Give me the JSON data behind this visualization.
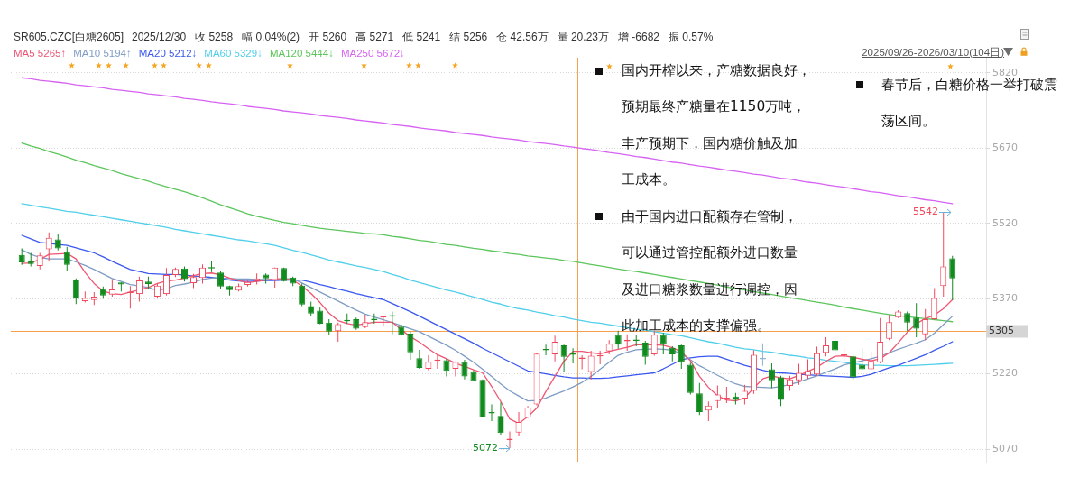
{
  "chart_data": {
    "type": "candlestick",
    "title": "SR605.CZC[白糖2605]",
    "subtitle": "2025/12/30   收 5258   幅 0.04%(2)   开 5260   高 5271   低 5241   结 5256   仓 42.56万   量 20.23万   增 -6682   振 0.57%",
    "categories": [
      null,
      null,
      null,
      null,
      null,
      null,
      null,
      null,
      null,
      null,
      null,
      null,
      null,
      null,
      null,
      null,
      null,
      null,
      null,
      null,
      null,
      null,
      null,
      null,
      null,
      null,
      null,
      null,
      null,
      null,
      null,
      null,
      null,
      null,
      null,
      null,
      null,
      null,
      null,
      null,
      null,
      null,
      null,
      null,
      null,
      null,
      null,
      null,
      null,
      null,
      null,
      null,
      null,
      null,
      null,
      null,
      null,
      null,
      null,
      null,
      null,
      null,
      null,
      null,
      null,
      null,
      null,
      null,
      null,
      null,
      null,
      null,
      null,
      null,
      null,
      null,
      null,
      null,
      null,
      null,
      null,
      null,
      null,
      null,
      null,
      null,
      null,
      null,
      null,
      null,
      null,
      null,
      null,
      null,
      null,
      null,
      null,
      null,
      null,
      null,
      null,
      null,
      null,
      null
    ],
    "ohlc": [
      [
        5457,
        5470,
        5437,
        5442
      ],
      [
        5446,
        5461,
        5434,
        5439
      ],
      [
        5435,
        5461,
        5428,
        5456
      ],
      [
        5468,
        5502,
        5444,
        5491
      ],
      [
        5488,
        5499,
        5466,
        5470
      ],
      [
        5463,
        5473,
        5426,
        5437
      ],
      [
        5408,
        5410,
        5359,
        5370
      ],
      [
        5365,
        5384,
        5362,
        5371
      ],
      [
        5367,
        5383,
        5357,
        5374
      ],
      [
        5389,
        5394,
        5370,
        5376
      ],
      [
        5378,
        5409,
        5374,
        5388
      ],
      [
        5402,
        5402,
        5384,
        5398
      ],
      [
        5381,
        5395,
        5350,
        5382
      ],
      [
        5379,
        5414,
        5364,
        5406
      ],
      [
        5404,
        5414,
        5389,
        5399
      ],
      [
        5374,
        5400,
        5371,
        5396
      ],
      [
        5379,
        5431,
        5376,
        5417
      ],
      [
        5417,
        5432,
        5413,
        5429
      ],
      [
        5430,
        5434,
        5404,
        5409
      ],
      [
        5401,
        5419,
        5391,
        5413
      ],
      [
        5411,
        5438,
        5400,
        5432
      ],
      [
        5431,
        5445,
        5423,
        5430
      ],
      [
        5422,
        5425,
        5389,
        5394
      ],
      [
        5395,
        5396,
        5376,
        5387
      ],
      [
        5386,
        5400,
        5384,
        5395
      ],
      [
        5397,
        5407,
        5394,
        5403
      ],
      [
        5405,
        5420,
        5398,
        5410
      ],
      [
        5418,
        5420,
        5400,
        5410
      ],
      [
        5407,
        5432,
        5392,
        5432
      ],
      [
        5431,
        5432,
        5404,
        5405
      ],
      [
        5412,
        5414,
        5395,
        5400
      ],
      [
        5396,
        5400,
        5355,
        5358
      ],
      [
        5355,
        5364,
        5335,
        5340
      ],
      [
        5346,
        5353,
        5319,
        5320
      ],
      [
        5322,
        5329,
        5298,
        5304
      ],
      [
        5305,
        5322,
        5284,
        5319
      ],
      [
        5326,
        5340,
        5320,
        5325
      ],
      [
        5329,
        5332,
        5308,
        5310
      ],
      [
        5313,
        5338,
        5311,
        5323
      ],
      [
        5328,
        5340,
        5320,
        5327
      ],
      [
        5332,
        5335,
        5314,
        5333
      ],
      [
        5337,
        5344,
        5299,
        5334
      ],
      [
        5314,
        5318,
        5296,
        5298
      ],
      [
        5300,
        5304,
        5248,
        5263
      ],
      [
        5251,
        5268,
        5230,
        5232
      ],
      [
        5230,
        5257,
        5227,
        5244
      ],
      [
        5246,
        5257,
        5230,
        5248
      ],
      [
        5247,
        5250,
        5215,
        5226
      ],
      [
        5230,
        5245,
        5215,
        5244
      ],
      [
        5244,
        5248,
        5209,
        5215
      ],
      [
        5224,
        5227,
        5205,
        5206
      ],
      [
        5208,
        5209,
        5133,
        5133
      ],
      [
        5142,
        5159,
        5126,
        5141
      ],
      [
        5136,
        5163,
        5099,
        5102
      ],
      [
        5088,
        5105,
        5072,
        5089
      ],
      [
        5103,
        5144,
        5096,
        5124
      ],
      [
        5133,
        5156,
        5132,
        5153
      ],
      [
        5159,
        5262,
        5157,
        5260
      ],
      [
        5268,
        5278,
        5257,
        5267
      ],
      [
        5259,
        5296,
        5245,
        5284
      ],
      [
        5277,
        5278,
        5224,
        5254
      ],
      [
        5260,
        5271,
        5241,
        5258
      ],
      [
        5250,
        5257,
        5229,
        5251
      ],
      [
        5224,
        5266,
        5209,
        5256
      ],
      [
        5255,
        5266,
        5239,
        5256
      ],
      [
        5265,
        5287,
        5259,
        5280
      ],
      [
        5298,
        5306,
        5270,
        5278
      ],
      [
        5285,
        5299,
        5266,
        5286
      ],
      [
        5287,
        5298,
        5275,
        5286
      ],
      [
        5282,
        5286,
        5238,
        5254
      ],
      [
        5259,
        5306,
        5256,
        5298
      ],
      [
        5298,
        5302,
        5259,
        5280
      ],
      [
        5272,
        5275,
        5245,
        5259
      ],
      [
        5277,
        5278,
        5230,
        5244
      ],
      [
        5238,
        5242,
        5179,
        5182
      ],
      [
        5181,
        5202,
        5138,
        5144
      ],
      [
        5147,
        5165,
        5126,
        5157
      ],
      [
        5166,
        5197,
        5153,
        5179
      ],
      [
        5170,
        5194,
        5162,
        5171
      ],
      [
        5175,
        5182,
        5159,
        5168
      ],
      [
        5171,
        5198,
        5159,
        5186
      ],
      [
        5186,
        5267,
        5180,
        5258
      ],
      [
        5250,
        5281,
        5236,
        5249
      ],
      [
        5229,
        5241,
        5192,
        5207
      ],
      [
        5213,
        5216,
        5156,
        5168
      ],
      [
        5196,
        5216,
        5186,
        5209
      ],
      [
        5207,
        5240,
        5198,
        5222
      ],
      [
        5216,
        5249,
        5210,
        5226
      ],
      [
        5219,
        5274,
        5216,
        5261
      ],
      [
        5262,
        5293,
        5255,
        5277
      ],
      [
        5286,
        5289,
        5259,
        5267
      ],
      [
        5256,
        5272,
        5246,
        5258
      ],
      [
        5255,
        5258,
        5207,
        5213
      ],
      [
        5238,
        5271,
        5228,
        5229
      ],
      [
        5229,
        5264,
        5228,
        5246
      ],
      [
        5243,
        5331,
        5241,
        5284
      ],
      [
        5290,
        5338,
        5287,
        5323
      ],
      [
        5332,
        5347,
        5331,
        5344
      ],
      [
        5341,
        5344,
        5305,
        5322
      ],
      [
        5332,
        5361,
        5293,
        5310
      ],
      [
        5299,
        5349,
        5287,
        5329
      ],
      [
        5329,
        5391,
        5328,
        5371
      ],
      [
        5395,
        5542,
        5374,
        5434
      ],
      [
        5450,
        5455,
        5367,
        5410
      ]
    ],
    "colors": [
      "#118a1e",
      "#118a1e",
      "#f0475b",
      "#f0475b",
      "#118a1e",
      "#118a1e",
      "#118a1e",
      "#f0475b",
      "#f0475b",
      "#118a1e",
      "#f0475b",
      "#118a1e",
      "#f0475b",
      "#f0475b",
      "#118a1e",
      "#f0475b",
      "#f0475b",
      "#f0475b",
      "#118a1e",
      "#f0475b",
      "#f0475b",
      "#118a1e",
      "#118a1e",
      "#118a1e",
      "#f0475b",
      "#f0475b",
      "#f0475b",
      "#118a1e",
      "#f0475b",
      "#118a1e",
      "#118a1e",
      "#118a1e",
      "#118a1e",
      "#118a1e",
      "#118a1e",
      "#f0475b",
      "#118a1e",
      "#118a1e",
      "#f0475b",
      "#118a1e",
      "#f0475b",
      "#118a1e",
      "#118a1e",
      "#118a1e",
      "#118a1e",
      "#f0475b",
      "#f0475b",
      "#118a1e",
      "#f0475b",
      "#118a1e",
      "#118a1e",
      "#118a1e",
      "#118a1e",
      "#118a1e",
      "#f0475b",
      "#f0475b",
      "#f0475b",
      "#f0475b",
      "#118a1e",
      "#f0475b",
      "#118a1e",
      "#118a1e",
      "#f0475b",
      "#f0475b",
      "#f0475b",
      "#f0475b",
      "#118a1e",
      "#f0475b",
      "#118a1e",
      "#118a1e",
      "#f0475b",
      "#118a1e",
      "#118a1e",
      "#118a1e",
      "#118a1e",
      "#118a1e",
      "#f0475b",
      "#f0475b",
      "#f0475b",
      "#118a1e",
      "#f0475b",
      "#f0475b",
      "#8fb2d2",
      "#118a1e",
      "#118a1e",
      "#f0475b",
      "#f0475b",
      "#f0475b",
      "#f0475b",
      "#f0475b",
      "#118a1e",
      "#f0475b",
      "#118a1e",
      "#118a1e",
      "#f0475b",
      "#f0475b",
      "#f0475b",
      "#f0475b",
      "#118a1e",
      "#118a1e",
      "#f0475b",
      "#f0475b",
      "#f0475b",
      "#118a1e"
    ],
    "series": [
      {
        "name": "MA5 5265↑",
        "type": "line",
        "color": "#ee5572",
        "values": [
          5440,
          5441,
          5448,
          5458,
          5459,
          5460,
          5449,
          5422,
          5400,
          5385,
          5380,
          5378,
          5383,
          5387,
          5392,
          5400,
          5405,
          5407,
          5411,
          5416,
          5420,
          5421,
          5417,
          5411,
          5406,
          5402,
          5404,
          5407,
          5409,
          5410,
          5407,
          5395,
          5380,
          5362,
          5341,
          5326,
          5320,
          5317,
          5320,
          5323,
          5323,
          5323,
          5308,
          5294,
          5283,
          5270,
          5258,
          5250,
          5241,
          5235,
          5228,
          5222,
          5195,
          5165,
          5130,
          5121,
          5135,
          5152,
          5185,
          5215,
          5245,
          5265,
          5265,
          5262,
          5260,
          5265,
          5269,
          5273,
          5278,
          5278,
          5278,
          5277,
          5272,
          5264,
          5246,
          5215,
          5193,
          5176,
          5168,
          5166,
          5172,
          5192,
          5210,
          5216,
          5212,
          5210,
          5217,
          5225,
          5233,
          5245,
          5255,
          5256,
          5253,
          5249,
          5246,
          5250,
          5262,
          5282,
          5303,
          5320,
          5330,
          5337,
          5350,
          5368
        ]
      },
      {
        "name": "MA10 5194↑",
        "type": "line",
        "color": "#7f9cc4",
        "values": [
          5467,
          5458,
          5452,
          5449,
          5449,
          5449,
          5443,
          5436,
          5428,
          5419,
          5410,
          5404,
          5398,
          5395,
          5392,
          5386,
          5390,
          5396,
          5399,
          5403,
          5408,
          5411,
          5411,
          5410,
          5409,
          5409,
          5408,
          5408,
          5408,
          5409,
          5410,
          5401,
          5392,
          5383,
          5374,
          5365,
          5356,
          5347,
          5339,
          5333,
          5328,
          5322,
          5316,
          5310,
          5304,
          5295,
          5286,
          5277,
          5267,
          5255,
          5243,
          5229,
          5215,
          5200,
          5186,
          5176,
          5166,
          5167,
          5172,
          5179,
          5186,
          5194,
          5203,
          5215,
          5229,
          5243,
          5257,
          5263,
          5268,
          5269,
          5270,
          5269,
          5267,
          5260,
          5248,
          5236,
          5227,
          5217,
          5208,
          5200,
          5195,
          5194,
          5193,
          5192,
          5195,
          5199,
          5204,
          5210,
          5216,
          5223,
          5230,
          5238,
          5242,
          5246,
          5250,
          5255,
          5262,
          5269,
          5275,
          5281,
          5288,
          5301,
          5318,
          5335
        ]
      },
      {
        "name": "MA20 5212↓",
        "type": "line",
        "color": "#3a58ee",
        "values": [
          5496,
          5489,
          5482,
          5480,
          5478,
          5476,
          5471,
          5466,
          5461,
          5453,
          5444,
          5436,
          5428,
          5424,
          5420,
          5419,
          5418,
          5418,
          5417,
          5415,
          5414,
          5412,
          5410,
          5407,
          5405,
          5404,
          5405,
          5406,
          5406,
          5407,
          5407,
          5407,
          5403,
          5398,
          5394,
          5389,
          5385,
          5380,
          5376,
          5372,
          5368,
          5360,
          5352,
          5344,
          5335,
          5326,
          5317,
          5308,
          5299,
          5290,
          5281,
          5271,
          5262,
          5253,
          5244,
          5235,
          5226,
          5223,
          5220,
          5217,
          5214,
          5212,
          5212,
          5211,
          5211,
          5212,
          5214,
          5216,
          5218,
          5220,
          5222,
          5230,
          5239,
          5248,
          5252,
          5254,
          5255,
          5255,
          5249,
          5243,
          5237,
          5232,
          5227,
          5223,
          5222,
          5221,
          5219,
          5218,
          5217,
          5216,
          5215,
          5214,
          5213,
          5215,
          5219,
          5226,
          5232,
          5237,
          5244,
          5251,
          5258,
          5267,
          5275,
          5284
        ]
      },
      {
        "name": "MA60 5329↓",
        "type": "line",
        "color": "#4fcfea",
        "values": [
          5559,
          5556,
          5553,
          5550,
          5547,
          5544,
          5542,
          5539,
          5536,
          5533,
          5530,
          5527,
          5524,
          5521,
          5518,
          5515,
          5512,
          5508,
          5505,
          5502,
          5499,
          5496,
          5493,
          5490,
          5487,
          5485,
          5482,
          5479,
          5476,
          5471,
          5466,
          5462,
          5457,
          5452,
          5447,
          5443,
          5439,
          5435,
          5432,
          5428,
          5424,
          5418,
          5413,
          5407,
          5402,
          5397,
          5392,
          5387,
          5383,
          5378,
          5373,
          5368,
          5363,
          5359,
          5354,
          5350,
          5347,
          5343,
          5340,
          5336,
          5333,
          5329,
          5326,
          5323,
          5321,
          5318,
          5315,
          5312,
          5309,
          5307,
          5304,
          5301,
          5298,
          5296,
          5292,
          5288,
          5284,
          5281,
          5277,
          5273,
          5270,
          5268,
          5265,
          5263,
          5260,
          5257,
          5255,
          5252,
          5250,
          5247,
          5245,
          5243,
          5240,
          5238,
          5237,
          5237,
          5236,
          5236,
          5236,
          5237,
          5238,
          5239,
          5240,
          5241
        ]
      },
      {
        "name": "MA120 5444↓",
        "type": "line",
        "color": "#5cc55c",
        "values": [
          5680,
          5674,
          5669,
          5663,
          5658,
          5652,
          5646,
          5641,
          5635,
          5630,
          5625,
          5619,
          5614,
          5609,
          5604,
          5598,
          5593,
          5588,
          5583,
          5577,
          5571,
          5564,
          5557,
          5551,
          5545,
          5539,
          5534,
          5530,
          5526,
          5522,
          5519,
          5516,
          5513,
          5510,
          5508,
          5506,
          5504,
          5502,
          5500,
          5499,
          5497,
          5494,
          5492,
          5489,
          5486,
          5484,
          5481,
          5478,
          5476,
          5473,
          5470,
          5468,
          5465,
          5463,
          5460,
          5458,
          5455,
          5453,
          5451,
          5449,
          5446,
          5444,
          5441,
          5438,
          5435,
          5432,
          5429,
          5426,
          5424,
          5421,
          5418,
          5415,
          5412,
          5409,
          5406,
          5403,
          5400,
          5397,
          5393,
          5390,
          5387,
          5384,
          5381,
          5378,
          5375,
          5372,
          5369,
          5366,
          5363,
          5360,
          5357,
          5353,
          5350,
          5347,
          5344,
          5341,
          5338,
          5336,
          5334,
          5332,
          5330,
          5328,
          5326,
          5324
        ]
      },
      {
        "name": "MA250 5672↓",
        "type": "line",
        "color": "#d662f2",
        "values": [
          5810,
          5808,
          5805,
          5803,
          5801,
          5799,
          5796,
          5794,
          5792,
          5790,
          5787,
          5785,
          5783,
          5781,
          5778,
          5776,
          5774,
          5772,
          5769,
          5767,
          5765,
          5762,
          5760,
          5758,
          5756,
          5753,
          5751,
          5749,
          5747,
          5744,
          5742,
          5740,
          5738,
          5735,
          5733,
          5731,
          5729,
          5726,
          5724,
          5722,
          5720,
          5717,
          5715,
          5713,
          5710,
          5708,
          5706,
          5704,
          5701,
          5699,
          5697,
          5695,
          5692,
          5690,
          5688,
          5686,
          5683,
          5681,
          5679,
          5677,
          5674,
          5672,
          5669,
          5667,
          5664,
          5661,
          5659,
          5656,
          5653,
          5651,
          5648,
          5645,
          5642,
          5640,
          5637,
          5634,
          5632,
          5629,
          5626,
          5624,
          5621,
          5618,
          5616,
          5613,
          5610,
          5608,
          5605,
          5602,
          5600,
          5597,
          5594,
          5592,
          5589,
          5586,
          5583,
          5581,
          5578,
          5575,
          5573,
          5570,
          5567,
          5565,
          5562,
          5559
        ]
      }
    ],
    "ylim": [
      5045,
      5850
    ],
    "yticks": [
      5070,
      5220,
      5370,
      5520,
      5670,
      5820
    ],
    "ref_lines": [
      {
        "axis": "y",
        "value": 5305,
        "label": "5305",
        "color": "#f6a04d"
      }
    ],
    "annotations": [
      "2025/09/26-2026/03/10(104日)",
      "国内开榨以来，产糖数据良好，预期最终产糖量在1150万吨，丰产预期下，国内糖价触及加工成本。",
      "由于国内进口配额存在管制，可以通过管控配额外进口数量及进口糖浆数量进行调控，因此加工成本的支撑偏强。",
      "春节后，白糖价格一举打破震荡区间。",
      "5542",
      "5072"
    ],
    "grid": "y",
    "legend": "top left",
    "tick_labels": "y"
  }
}
